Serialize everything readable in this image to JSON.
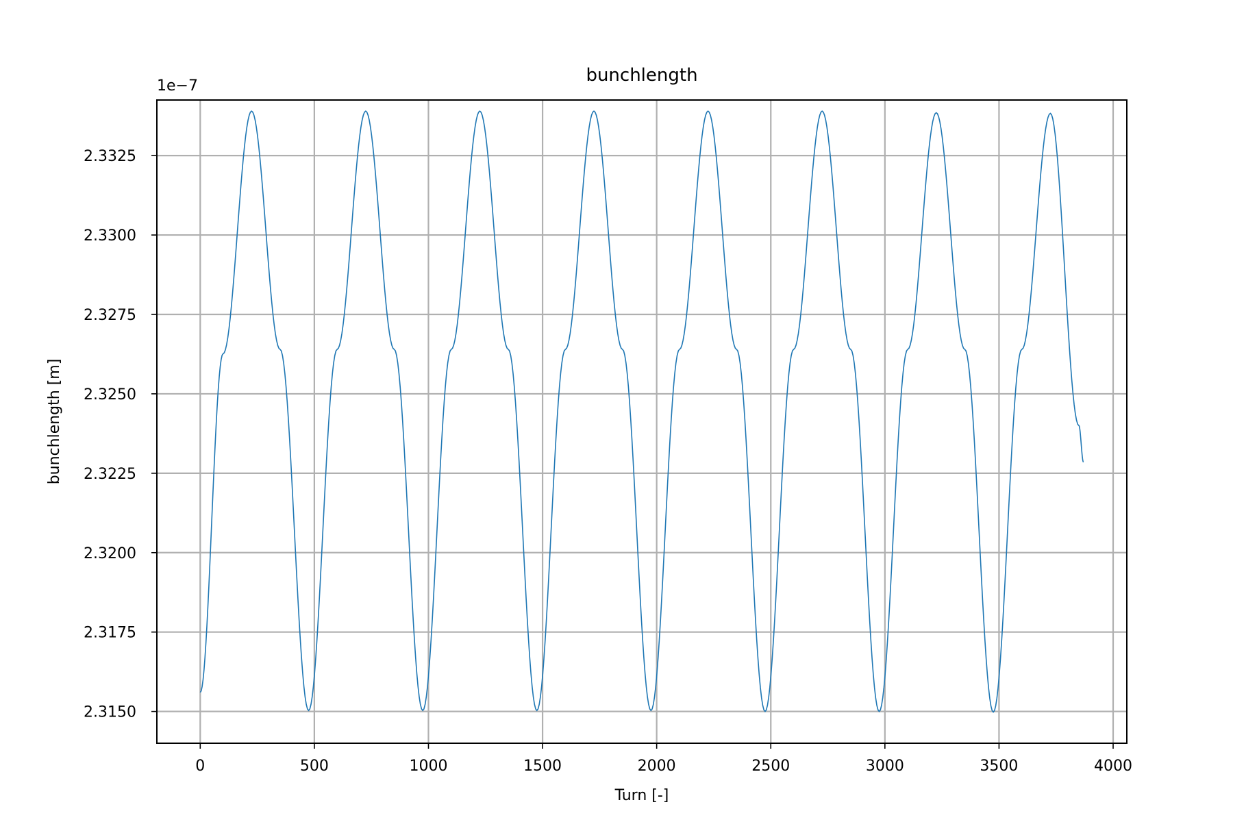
{
  "chart_data": {
    "type": "line",
    "title": "bunchlength",
    "xlabel": "Turn [-]",
    "ylabel": "bunchlength [m]",
    "offset_text": "1e−7",
    "xlim": [
      -190,
      4060
    ],
    "ylim": [
      2.314,
      2.33425
    ],
    "xticks": [
      0,
      500,
      1000,
      1500,
      2000,
      2500,
      3000,
      3500,
      4000
    ],
    "xtick_labels": [
      "0",
      "500",
      "1000",
      "1500",
      "2000",
      "2500",
      "3000",
      "3500",
      "4000"
    ],
    "yticks": [
      2.315,
      2.3175,
      2.32,
      2.3225,
      2.325,
      2.3275,
      2.33,
      2.3325
    ],
    "ytick_labels": [
      "2.3150",
      "2.3175",
      "2.3200",
      "2.3225",
      "2.3250",
      "2.3275",
      "2.3300",
      "2.3325"
    ],
    "grid": true,
    "color": "#1f77b4",
    "series": [
      {
        "x": [
          0,
          100,
          225,
          350,
          475,
          600,
          725,
          850,
          975,
          1100,
          1225,
          1350,
          1475,
          1600,
          1725,
          1850,
          1975,
          2100,
          2225,
          2350,
          2475,
          2600,
          2725,
          2850,
          2975,
          3100,
          3225,
          3350,
          3475,
          3600,
          3725,
          3850,
          3870
        ],
        "y": [
          2.3156,
          2.32626,
          2.3339,
          2.3264,
          2.31503,
          2.3264,
          2.3339,
          2.3264,
          2.31503,
          2.3264,
          2.3339,
          2.3264,
          2.31503,
          2.3264,
          2.3339,
          2.3264,
          2.31503,
          2.3264,
          2.3339,
          2.3264,
          2.315,
          2.3264,
          2.3339,
          2.3264,
          2.315,
          2.3264,
          2.33385,
          2.3264,
          2.31498,
          2.3264,
          2.33383,
          2.324,
          2.32285
        ],
        "period": 500
      }
    ]
  }
}
